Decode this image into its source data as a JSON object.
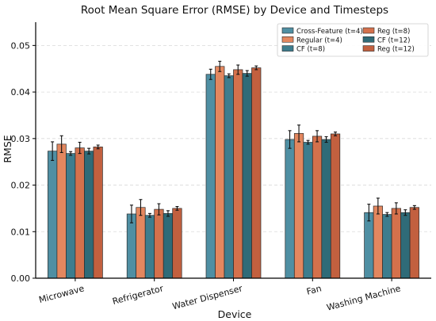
{
  "chart_data": {
    "type": "bar",
    "title": "Root Mean Square Error (RMSE) by Device and Timesteps",
    "xlabel": "Device",
    "ylabel": "RMSE",
    "ylim": [
      0,
      0.055
    ],
    "yticks": [
      "0.00",
      "0.01",
      "0.02",
      "0.03",
      "0.04",
      "0.05"
    ],
    "categories": [
      "Microwave",
      "Refrigerator",
      "Water Dispenser",
      "Fan",
      "Washing Machine"
    ],
    "grid": true,
    "legend_position": "top-right",
    "series": [
      {
        "name": "Cross-Feature (t=4)",
        "color": "#4f8fa3",
        "values": [
          0.0273,
          0.0138,
          0.0438,
          0.0298,
          0.0141
        ],
        "errors": [
          0.002,
          0.0019,
          0.0011,
          0.0019,
          0.0018
        ]
      },
      {
        "name": "Regular (t=4)",
        "color": "#e3875f",
        "values": [
          0.0288,
          0.0152,
          0.0455,
          0.0311,
          0.0155
        ],
        "errors": [
          0.0018,
          0.0017,
          0.0011,
          0.0018,
          0.0017
        ]
      },
      {
        "name": "CF (t=8)",
        "color": "#3d7d8e",
        "values": [
          0.0268,
          0.0135,
          0.0435,
          0.0292,
          0.0137
        ],
        "errors": [
          0.0004,
          0.0004,
          0.0004,
          0.0004,
          0.0004
        ]
      },
      {
        "name": "Reg (t=8)",
        "color": "#d4714c",
        "values": [
          0.028,
          0.0148,
          0.0448,
          0.0305,
          0.015
        ],
        "errors": [
          0.0012,
          0.0012,
          0.001,
          0.0012,
          0.0012
        ]
      },
      {
        "name": "CF (t=12)",
        "color": "#2f6b78",
        "values": [
          0.0273,
          0.0139,
          0.044,
          0.0298,
          0.0141
        ],
        "errors": [
          0.0006,
          0.0006,
          0.0006,
          0.0006,
          0.0006
        ]
      },
      {
        "name": "Reg (t=12)",
        "color": "#c2603f",
        "values": [
          0.0282,
          0.015,
          0.0452,
          0.031,
          0.0152
        ],
        "errors": [
          0.0004,
          0.0004,
          0.0004,
          0.0004,
          0.0004
        ]
      }
    ]
  }
}
